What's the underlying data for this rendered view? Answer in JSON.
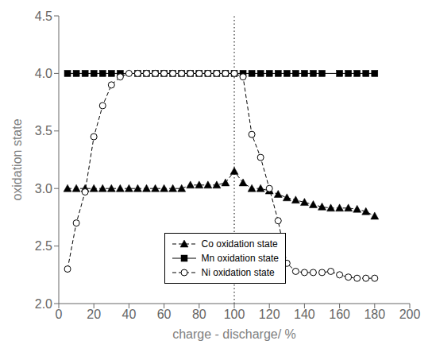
{
  "chart_data": {
    "type": "line",
    "xlabel": "charge - discharge/ %",
    "ylabel": "oxidation state",
    "xlim": [
      0,
      200
    ],
    "ylim": [
      2.0,
      4.5
    ],
    "xticks": [
      0,
      20,
      40,
      60,
      80,
      100,
      120,
      140,
      160,
      180,
      200
    ],
    "yticks": [
      {
        "value": 2.0,
        "label": "2.0"
      },
      {
        "value": 2.5,
        "label": "2.5"
      },
      {
        "value": 3.0,
        "label": "3.0"
      },
      {
        "value": 3.5,
        "label": "3.5"
      },
      {
        "value": 4.0,
        "label": "4.0"
      },
      {
        "value": 4.5,
        "label": "4.5"
      }
    ],
    "grid": false,
    "legend": "lower left",
    "reference_line_x": 100,
    "x": [
      5,
      10,
      15,
      20,
      25,
      30,
      35,
      40,
      45,
      50,
      55,
      60,
      65,
      70,
      75,
      80,
      85,
      90,
      95,
      100,
      105,
      110,
      115,
      120,
      125,
      130,
      135,
      140,
      145,
      150,
      155,
      160,
      165,
      170,
      175,
      180
    ],
    "series": [
      {
        "name": "Co oxidation state",
        "color": "black",
        "marker": "triangle",
        "line_style": "dashed",
        "values": [
          3.0,
          3.0,
          3.0,
          3.0,
          3.0,
          3.0,
          3.0,
          3.0,
          3.0,
          3.0,
          3.0,
          3.0,
          3.0,
          3.0,
          3.03,
          3.03,
          3.03,
          3.03,
          3.05,
          3.15,
          3.05,
          3.0,
          3.0,
          2.98,
          2.95,
          2.92,
          2.9,
          2.88,
          2.86,
          2.84,
          2.83,
          2.83,
          2.83,
          2.82,
          2.8,
          2.76
        ]
      },
      {
        "name": "Mn oxidation state",
        "color": "black",
        "marker": "square",
        "line_style": "solid",
        "x": [
          5,
          10,
          15,
          20,
          25,
          30,
          35,
          45,
          50,
          55,
          60,
          65,
          70,
          75,
          80,
          85,
          90,
          95,
          100,
          105,
          110,
          115,
          120,
          125,
          130,
          135,
          140,
          145,
          150,
          160,
          165,
          170,
          175,
          180
        ],
        "values": [
          4.0,
          4.0,
          4.0,
          4.0,
          4.0,
          4.0,
          4.0,
          4.0,
          4.0,
          4.0,
          4.0,
          4.0,
          4.0,
          4.0,
          4.0,
          4.0,
          4.0,
          4.0,
          4.0,
          4.0,
          4.0,
          4.0,
          4.0,
          4.0,
          4.0,
          4.0,
          4.0,
          4.0,
          4.0,
          4.0,
          4.0,
          4.0,
          4.0,
          4.0
        ]
      },
      {
        "name": "Ni oxidation state",
        "color": "black",
        "marker": "circle_open",
        "line_style": "dashed",
        "values": [
          2.3,
          2.7,
          2.97,
          3.45,
          3.72,
          3.9,
          3.97,
          4.0,
          4.0,
          4.0,
          4.0,
          4.0,
          4.0,
          4.0,
          4.0,
          4.0,
          4.0,
          4.0,
          4.0,
          4.0,
          3.97,
          3.47,
          3.27,
          3.0,
          2.72,
          2.35,
          2.28,
          2.27,
          2.27,
          2.27,
          2.28,
          2.25,
          2.23,
          2.22,
          2.22,
          2.22
        ]
      }
    ]
  }
}
